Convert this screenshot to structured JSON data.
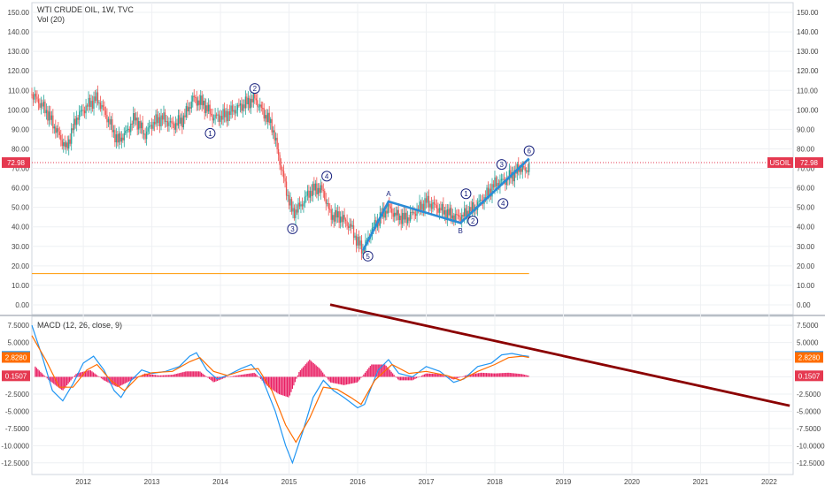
{
  "chart_data": {
    "type": "candlestick",
    "title": "WTI CRUDE OIL, 1W, TVC",
    "volume_label": "Vol (20)",
    "price_axis": {
      "min": 0,
      "max": 150,
      "step": 10
    },
    "x_axis": {
      "labels": [
        "2012",
        "2013",
        "2014",
        "2015",
        "2016",
        "2017",
        "2018",
        "2019",
        "2020",
        "2021",
        "2022"
      ]
    },
    "last_price": {
      "value": "72.98",
      "symbol": "USOIL",
      "color": "#e53950"
    },
    "support_line": {
      "value": 16,
      "color": "#ff9800"
    },
    "price_path": [
      [
        2011.25,
        108
      ],
      [
        2011.45,
        100
      ],
      [
        2011.6,
        90
      ],
      [
        2011.75,
        80
      ],
      [
        2011.9,
        96
      ],
      [
        2012.05,
        102
      ],
      [
        2012.2,
        106
      ],
      [
        2012.35,
        96
      ],
      [
        2012.5,
        84
      ],
      [
        2012.62,
        88
      ],
      [
        2012.75,
        96
      ],
      [
        2012.9,
        87
      ],
      [
        2013.0,
        93
      ],
      [
        2013.15,
        96
      ],
      [
        2013.3,
        92
      ],
      [
        2013.45,
        95
      ],
      [
        2013.6,
        106
      ],
      [
        2013.75,
        103
      ],
      [
        2013.9,
        96
      ],
      [
        2014.05,
        97
      ],
      [
        2014.2,
        100
      ],
      [
        2014.35,
        103
      ],
      [
        2014.5,
        106
      ],
      [
        2014.6,
        100
      ],
      [
        2014.75,
        92
      ],
      [
        2014.85,
        76
      ],
      [
        2014.95,
        60
      ],
      [
        2015.05,
        47
      ],
      [
        2015.15,
        50
      ],
      [
        2015.3,
        58
      ],
      [
        2015.4,
        60
      ],
      [
        2015.5,
        58
      ],
      [
        2015.6,
        46
      ],
      [
        2015.75,
        45
      ],
      [
        2015.9,
        40
      ],
      [
        2016.0,
        32
      ],
      [
        2016.08,
        28
      ],
      [
        2016.2,
        38
      ],
      [
        2016.35,
        46
      ],
      [
        2016.45,
        50
      ],
      [
        2016.55,
        46
      ],
      [
        2016.7,
        44
      ],
      [
        2016.85,
        48
      ],
      [
        2017.0,
        53
      ],
      [
        2017.15,
        50
      ],
      [
        2017.3,
        47
      ],
      [
        2017.45,
        45
      ],
      [
        2017.55,
        46
      ],
      [
        2017.7,
        50
      ],
      [
        2017.85,
        55
      ],
      [
        2018.0,
        62
      ],
      [
        2018.15,
        64
      ],
      [
        2018.3,
        68
      ],
      [
        2018.4,
        71
      ],
      [
        2018.45,
        67
      ],
      [
        2018.5,
        73
      ]
    ],
    "elliott_labels": [
      {
        "label": "1",
        "x": 2013.85,
        "y": 88
      },
      {
        "label": "2",
        "x": 2014.5,
        "y": 111
      },
      {
        "label": "3",
        "x": 2015.05,
        "y": 39
      },
      {
        "label": "4",
        "x": 2015.55,
        "y": 66
      },
      {
        "label": "5",
        "x": 2016.15,
        "y": 25
      },
      {
        "label": "A",
        "x": 2016.45,
        "y": 57
      },
      {
        "label": "B",
        "x": 2017.5,
        "y": 38
      },
      {
        "label": "1",
        "x": 2017.58,
        "y": 57
      },
      {
        "label": "2",
        "x": 2017.68,
        "y": 43
      },
      {
        "label": "3",
        "x": 2018.1,
        "y": 72
      },
      {
        "label": "4",
        "x": 2018.12,
        "y": 52
      },
      {
        "label": "6",
        "x": 2018.5,
        "y": 79
      }
    ],
    "blue_trend": [
      [
        2016.08,
        28
      ],
      [
        2016.45,
        53
      ],
      [
        2017.5,
        42
      ],
      [
        2018.5,
        75
      ]
    ],
    "macd": {
      "label": "MACD (12, 26, close, 9)",
      "y_axis": {
        "labels": [
          "7.5000",
          "5.0000",
          "2.5000",
          "0.0000",
          "-2.5000",
          "-5.0000",
          "-7.5000",
          "-10.0000",
          "-12.5000"
        ]
      },
      "macd_value": "2.9787",
      "signal_value": "2.8280",
      "hist_value": "0.1507",
      "colors": {
        "macd": "#2196f3",
        "signal": "#ff6d00",
        "hist": "#e91e63"
      },
      "macd_path": [
        [
          2011.25,
          7.5
        ],
        [
          2011.4,
          3
        ],
        [
          2011.55,
          -2
        ],
        [
          2011.7,
          -3.5
        ],
        [
          2011.85,
          -1
        ],
        [
          2012.0,
          2
        ],
        [
          2012.15,
          3
        ],
        [
          2012.3,
          1
        ],
        [
          2012.45,
          -2
        ],
        [
          2012.55,
          -3
        ],
        [
          2012.7,
          -0.5
        ],
        [
          2012.85,
          1
        ],
        [
          2013.0,
          0.5
        ],
        [
          2013.2,
          0.8
        ],
        [
          2013.4,
          1.5
        ],
        [
          2013.55,
          3
        ],
        [
          2013.65,
          3.5
        ],
        [
          2013.8,
          1
        ],
        [
          2013.95,
          -0.3
        ],
        [
          2014.1,
          0.2
        ],
        [
          2014.3,
          1.2
        ],
        [
          2014.45,
          1.8
        ],
        [
          2014.6,
          0
        ],
        [
          2014.8,
          -5
        ],
        [
          2014.95,
          -10
        ],
        [
          2015.05,
          -12.5
        ],
        [
          2015.2,
          -8
        ],
        [
          2015.35,
          -3
        ],
        [
          2015.5,
          -0.5
        ],
        [
          2015.65,
          -2
        ],
        [
          2015.8,
          -3
        ],
        [
          2016.0,
          -4.5
        ],
        [
          2016.1,
          -4
        ],
        [
          2016.3,
          1
        ],
        [
          2016.45,
          2.5
        ],
        [
          2016.6,
          0.5
        ],
        [
          2016.8,
          0
        ],
        [
          2017.0,
          1.5
        ],
        [
          2017.2,
          0.8
        ],
        [
          2017.4,
          -0.8
        ],
        [
          2017.55,
          -0.3
        ],
        [
          2017.75,
          1.5
        ],
        [
          2017.95,
          2
        ],
        [
          2018.1,
          3.2
        ],
        [
          2018.25,
          3.4
        ],
        [
          2018.4,
          3.1
        ],
        [
          2018.5,
          2.98
        ]
      ],
      "signal_path": [
        [
          2011.25,
          6
        ],
        [
          2011.45,
          2.5
        ],
        [
          2011.65,
          -1.5
        ],
        [
          2011.85,
          -1.5
        ],
        [
          2012.05,
          1
        ],
        [
          2012.2,
          1.8
        ],
        [
          2012.4,
          -0.5
        ],
        [
          2012.6,
          -2
        ],
        [
          2012.8,
          0
        ],
        [
          2013.0,
          0.6
        ],
        [
          2013.3,
          0.8
        ],
        [
          2013.55,
          2.2
        ],
        [
          2013.7,
          2.8
        ],
        [
          2013.9,
          0.8
        ],
        [
          2014.1,
          0.2
        ],
        [
          2014.35,
          1
        ],
        [
          2014.55,
          1.2
        ],
        [
          2014.75,
          -2
        ],
        [
          2014.95,
          -7
        ],
        [
          2015.1,
          -9.5
        ],
        [
          2015.3,
          -6
        ],
        [
          2015.5,
          -1.5
        ],
        [
          2015.7,
          -1.8
        ],
        [
          2015.9,
          -3
        ],
        [
          2016.05,
          -4
        ],
        [
          2016.25,
          -0.5
        ],
        [
          2016.5,
          1.8
        ],
        [
          2016.75,
          0.5
        ],
        [
          2017.0,
          0.8
        ],
        [
          2017.3,
          0.2
        ],
        [
          2017.5,
          -0.5
        ],
        [
          2017.75,
          0.8
        ],
        [
          2018.0,
          1.8
        ],
        [
          2018.2,
          2.8
        ],
        [
          2018.4,
          3
        ],
        [
          2018.5,
          2.83
        ]
      ],
      "hist_path": [
        [
          2011.3,
          1.5
        ],
        [
          2011.5,
          -0.5
        ],
        [
          2011.7,
          -2
        ],
        [
          2011.9,
          0.5
        ],
        [
          2012.1,
          1
        ],
        [
          2012.3,
          -0.5
        ],
        [
          2012.5,
          -1.5
        ],
        [
          2012.7,
          -0.5
        ],
        [
          2012.9,
          0.5
        ],
        [
          2013.1,
          0.2
        ],
        [
          2013.3,
          0.3
        ],
        [
          2013.5,
          0.8
        ],
        [
          2013.7,
          0.8
        ],
        [
          2013.9,
          -0.8
        ],
        [
          2014.1,
          0
        ],
        [
          2014.3,
          0.3
        ],
        [
          2014.5,
          0.6
        ],
        [
          2014.7,
          -1.5
        ],
        [
          2014.85,
          -2.5
        ],
        [
          2015.0,
          -3
        ],
        [
          2015.15,
          0.8
        ],
        [
          2015.3,
          2.5
        ],
        [
          2015.45,
          1.2
        ],
        [
          2015.6,
          -0.8
        ],
        [
          2015.8,
          -1.2
        ],
        [
          2016.0,
          -0.8
        ],
        [
          2016.2,
          1.8
        ],
        [
          2016.4,
          1.8
        ],
        [
          2016.6,
          -0.5
        ],
        [
          2016.8,
          -0.5
        ],
        [
          2017.0,
          0.5
        ],
        [
          2017.2,
          0.4
        ],
        [
          2017.4,
          -0.4
        ],
        [
          2017.6,
          0.3
        ],
        [
          2017.8,
          0.6
        ],
        [
          2018.0,
          0.5
        ],
        [
          2018.2,
          0.6
        ],
        [
          2018.4,
          0.4
        ],
        [
          2018.5,
          0.15
        ]
      ],
      "red_trend": {
        "from": [
          2015.6,
          10.5
        ],
        "to": [
          2022.3,
          -4.2
        ],
        "color": "#8b0000"
      }
    }
  }
}
